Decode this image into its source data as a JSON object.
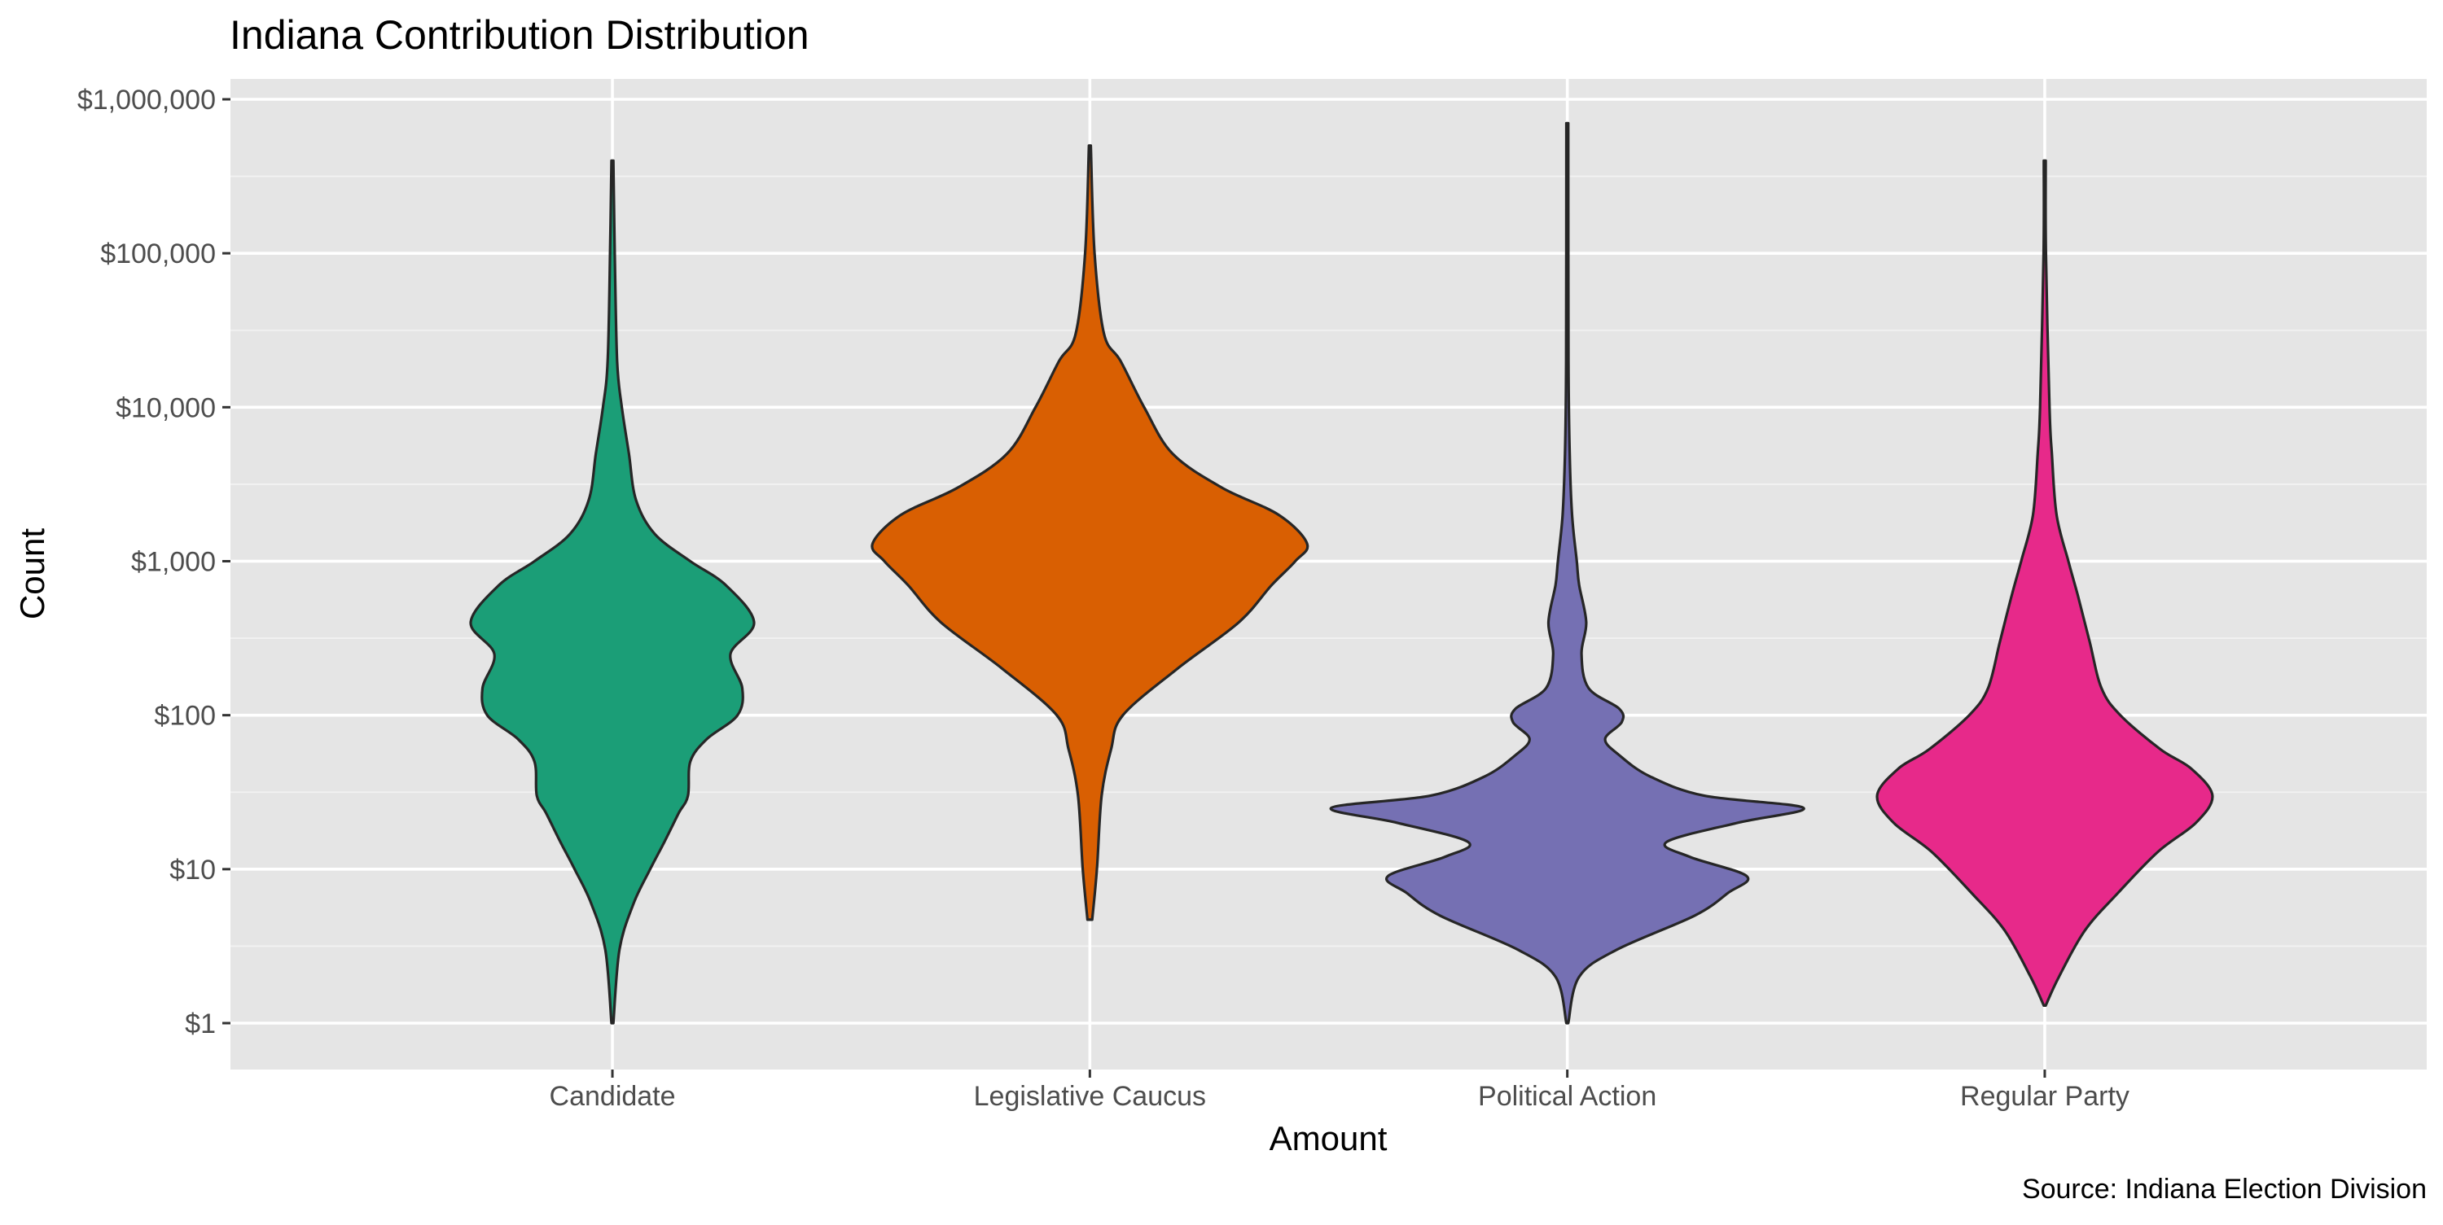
{
  "chart_data": {
    "type": "violin",
    "title": "Indiana Contribution Distribution",
    "xlabel": "Amount",
    "ylabel": "Count",
    "caption": "Source: Indiana Election Division",
    "y_scale": "log10",
    "ylim": [
      1,
      1000000
    ],
    "y_ticks": [
      {
        "value": 1,
        "label": "$1"
      },
      {
        "value": 10,
        "label": "$10"
      },
      {
        "value": 100,
        "label": "$100"
      },
      {
        "value": 1000,
        "label": "$1,000"
      },
      {
        "value": 10000,
        "label": "$10,000"
      },
      {
        "value": 100000,
        "label": "$100,000"
      },
      {
        "value": 1000000,
        "label": "$1,000,000"
      }
    ],
    "grid": true,
    "legend": "none",
    "categories": [
      "Candidate",
      "Legislative Caucus",
      "Political Action",
      "Regular Party"
    ],
    "colors": [
      "#1b9e77",
      "#d95f02",
      "#7570b3",
      "#e7298a"
    ],
    "series": [
      {
        "category": "Candidate",
        "min": 1,
        "max": 400000,
        "density_profile": [
          [
            1,
            0.0
          ],
          [
            3,
            0.03
          ],
          [
            6,
            0.09
          ],
          [
            10,
            0.16
          ],
          [
            15,
            0.22
          ],
          [
            23,
            0.28
          ],
          [
            30,
            0.32
          ],
          [
            50,
            0.33
          ],
          [
            70,
            0.4
          ],
          [
            100,
            0.53
          ],
          [
            150,
            0.55
          ],
          [
            250,
            0.5
          ],
          [
            400,
            0.6
          ],
          [
            700,
            0.48
          ],
          [
            1000,
            0.33
          ],
          [
            1500,
            0.18
          ],
          [
            2500,
            0.1
          ],
          [
            5000,
            0.07
          ],
          [
            10000,
            0.04
          ],
          [
            20000,
            0.02
          ],
          [
            100000,
            0.01
          ],
          [
            400000,
            0.0
          ]
        ]
      },
      {
        "category": "Legislative Caucus",
        "min": 4.7,
        "max": 500000,
        "density_profile": [
          [
            4.7,
            0.01
          ],
          [
            10,
            0.03
          ],
          [
            30,
            0.05
          ],
          [
            60,
            0.09
          ],
          [
            100,
            0.14
          ],
          [
            200,
            0.37
          ],
          [
            400,
            0.63
          ],
          [
            700,
            0.77
          ],
          [
            1000,
            0.87
          ],
          [
            1300,
            0.92
          ],
          [
            2000,
            0.8
          ],
          [
            3000,
            0.56
          ],
          [
            5000,
            0.35
          ],
          [
            10000,
            0.23
          ],
          [
            20000,
            0.13
          ],
          [
            30000,
            0.06
          ],
          [
            100000,
            0.02
          ],
          [
            500000,
            0.0
          ]
        ]
      },
      {
        "category": "Political Action",
        "min": 1,
        "max": 700000,
        "density_profile": [
          [
            1,
            0.0
          ],
          [
            2,
            0.05
          ],
          [
            3,
            0.21
          ],
          [
            5,
            0.54
          ],
          [
            7,
            0.68
          ],
          [
            9,
            0.76
          ],
          [
            12,
            0.52
          ],
          [
            15,
            0.42
          ],
          [
            20,
            0.72
          ],
          [
            25,
            1.0
          ],
          [
            30,
            0.58
          ],
          [
            40,
            0.35
          ],
          [
            55,
            0.22
          ],
          [
            70,
            0.16
          ],
          [
            90,
            0.23
          ],
          [
            110,
            0.22
          ],
          [
            150,
            0.09
          ],
          [
            250,
            0.06
          ],
          [
            400,
            0.08
          ],
          [
            700,
            0.05
          ],
          [
            1000,
            0.04
          ],
          [
            2000,
            0.02
          ],
          [
            5000,
            0.01
          ],
          [
            20000,
            0.005
          ],
          [
            700000,
            0.0
          ]
        ]
      },
      {
        "category": "Regular Party",
        "min": 1.3,
        "max": 400000,
        "density_profile": [
          [
            1.3,
            0.0
          ],
          [
            2,
            0.06
          ],
          [
            4,
            0.17
          ],
          [
            7,
            0.31
          ],
          [
            13,
            0.48
          ],
          [
            20,
            0.64
          ],
          [
            30,
            0.71
          ],
          [
            45,
            0.62
          ],
          [
            60,
            0.49
          ],
          [
            100,
            0.32
          ],
          [
            150,
            0.24
          ],
          [
            300,
            0.19
          ],
          [
            600,
            0.14
          ],
          [
            1000,
            0.1
          ],
          [
            2000,
            0.05
          ],
          [
            5000,
            0.03
          ],
          [
            10000,
            0.02
          ],
          [
            100000,
            0.005
          ],
          [
            400000,
            0.0
          ]
        ]
      }
    ]
  }
}
